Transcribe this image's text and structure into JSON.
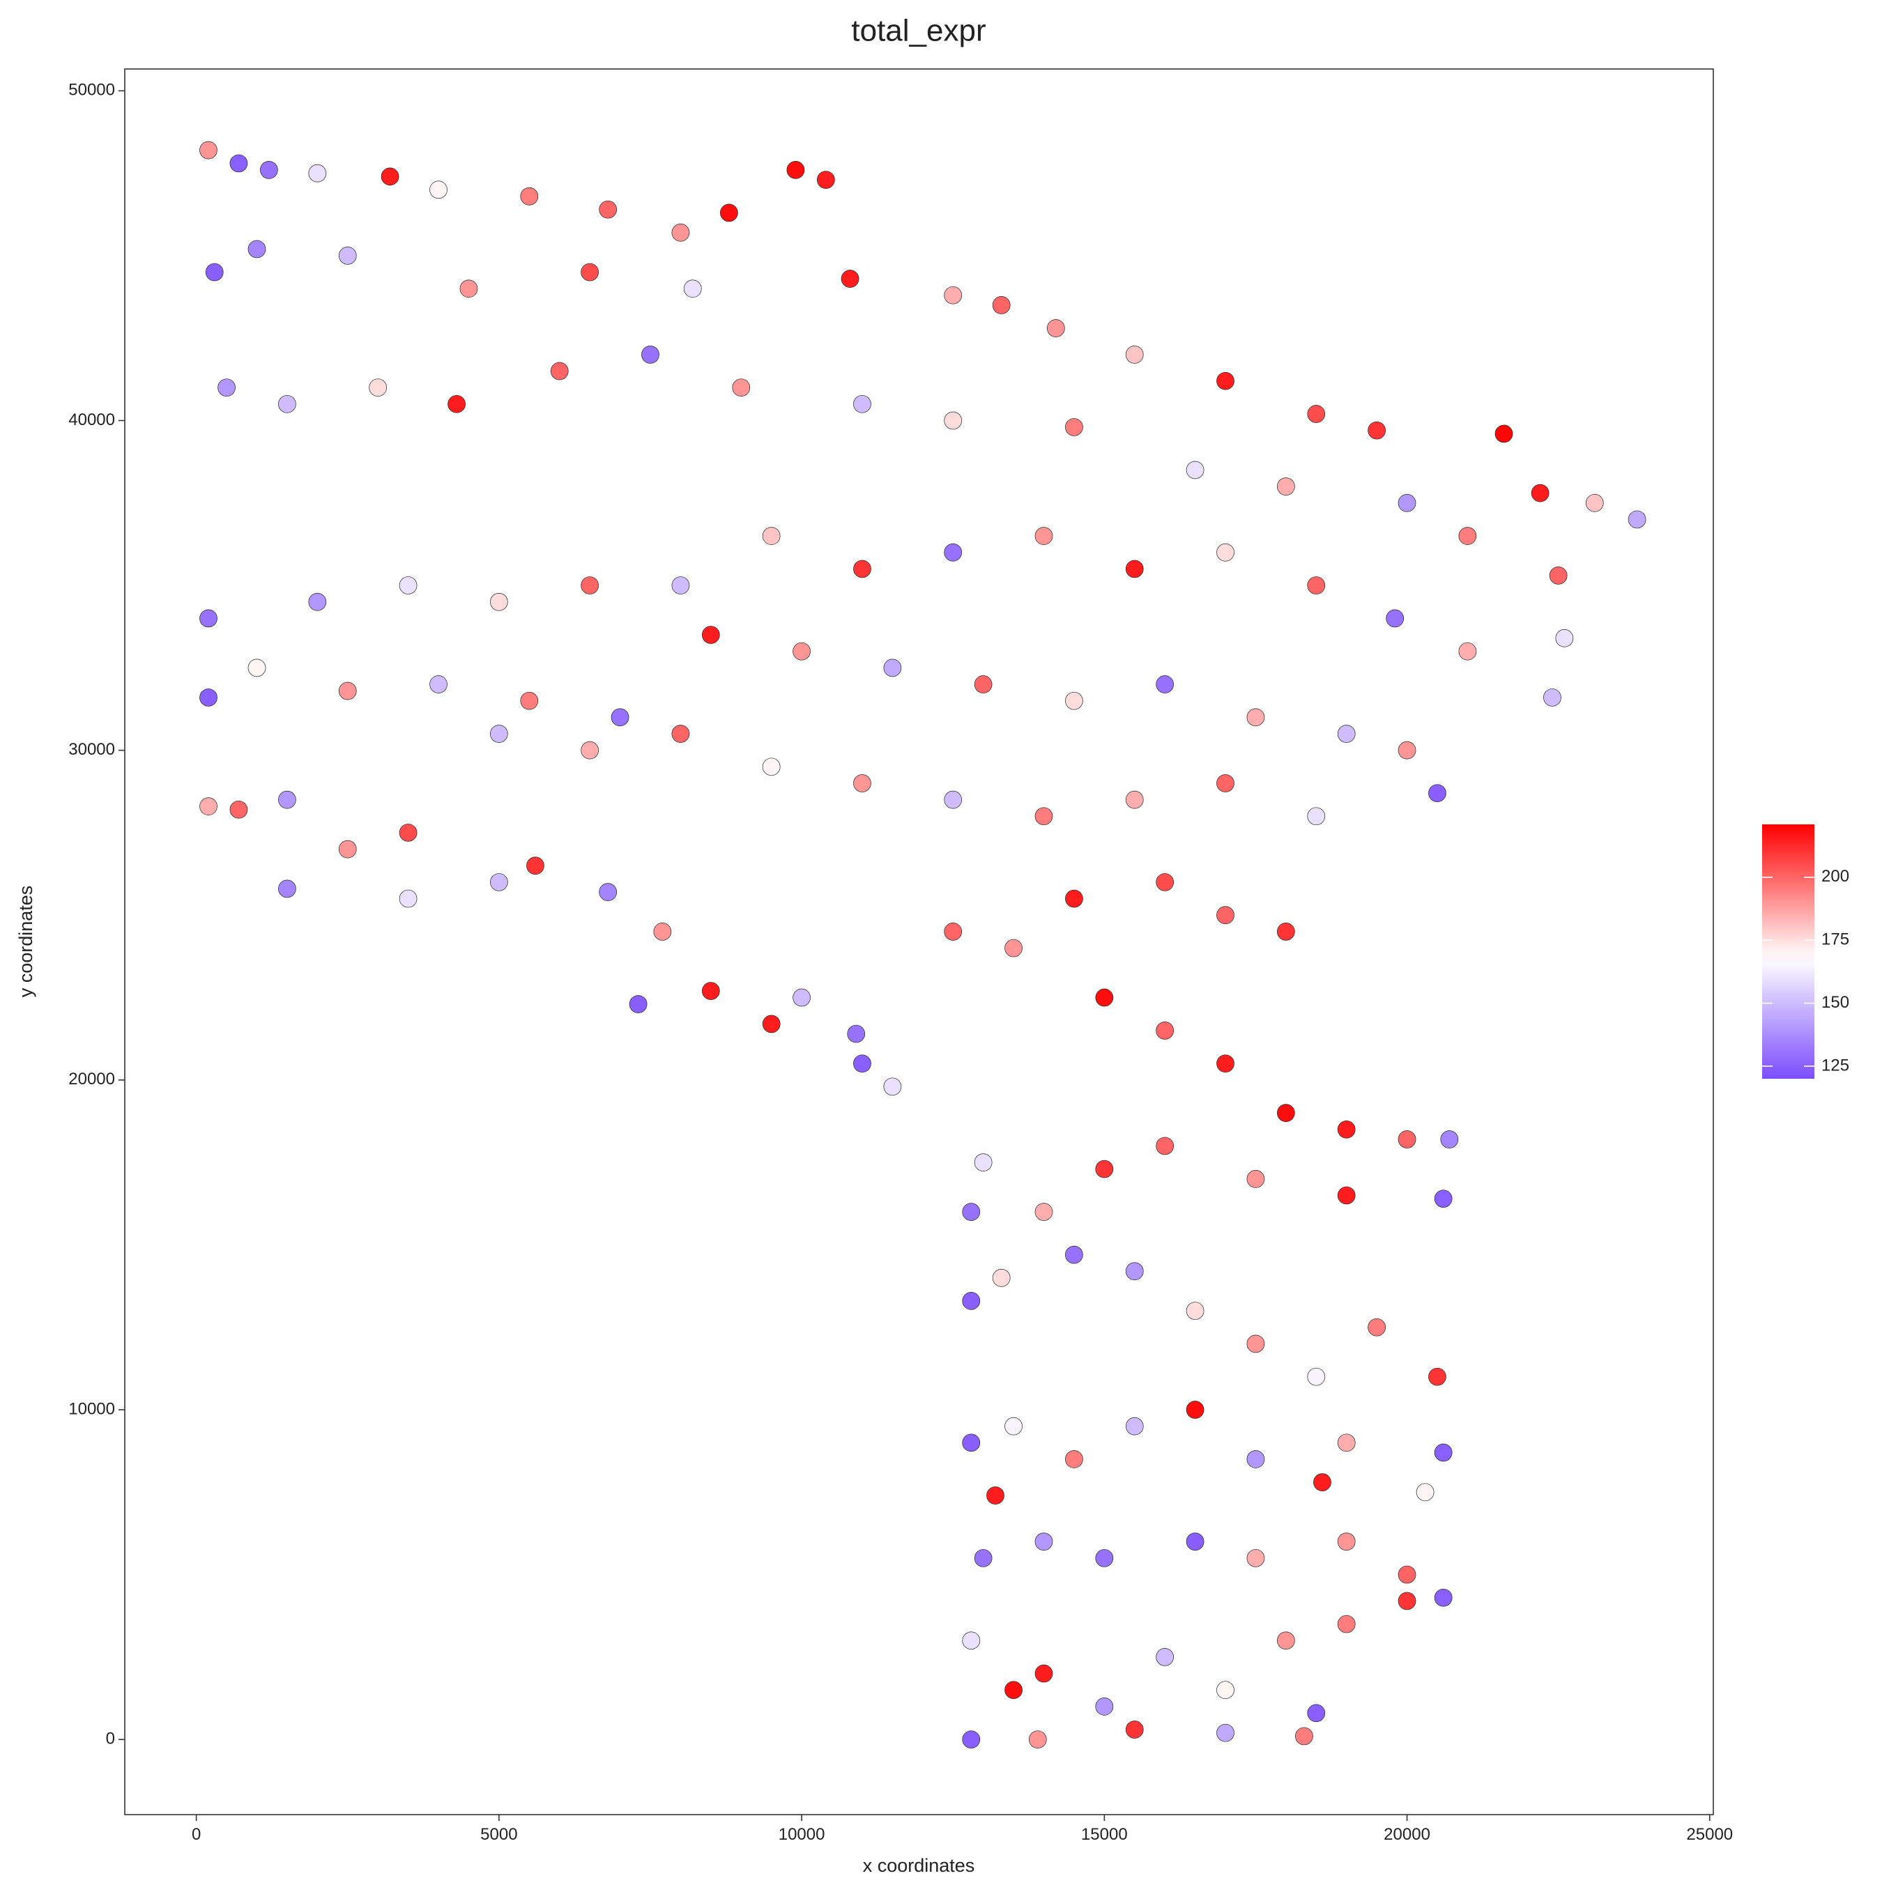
{
  "chart_data": {
    "type": "scatter",
    "title": "total_expr",
    "x_label": "x coordinates",
    "y_label": "y coordinates",
    "xlim": [
      -1182,
      25060
    ],
    "ylim": [
      -2279,
      50662
    ],
    "xticks": [
      0,
      5000,
      10000,
      15000,
      20000,
      25000
    ],
    "yticks": [
      0,
      10000,
      20000,
      30000,
      40000,
      50000
    ],
    "grid": false,
    "legend_position": "right",
    "color_scale": {
      "low": "#7b4dff",
      "mid": "#ffffff",
      "high": "#ff0000",
      "midpoint": 168,
      "lim": [
        120,
        221
      ],
      "ticks": [
        125,
        150,
        175,
        200
      ]
    },
    "x": [
      200,
      700,
      1200,
      2000,
      3200,
      4000,
      5500,
      6800,
      8000,
      9900,
      10400,
      8800,
      300,
      1000,
      2500,
      4500,
      6500,
      8200,
      10800,
      12500,
      13300,
      14200,
      15500,
      17000,
      18500,
      19500,
      21600,
      22200,
      23800,
      23100,
      500,
      1500,
      3000,
      4300,
      6000,
      7500,
      9000,
      11000,
      12500,
      14500,
      16500,
      18000,
      20000,
      21000,
      22500,
      22600,
      22400,
      21000,
      19800,
      18500,
      17000,
      15500,
      14000,
      12500,
      11000,
      9500,
      8000,
      6500,
      5000,
      3500,
      2000,
      200,
      200,
      1000,
      2500,
      4000,
      5500,
      7000,
      8500,
      10000,
      11500,
      13000,
      14500,
      16000,
      17500,
      19000,
      20000,
      20500,
      18500,
      17000,
      15500,
      14000,
      12500,
      11000,
      9500,
      8000,
      6500,
      5000,
      200,
      700,
      1500,
      2500,
      3500,
      1500,
      3500,
      5000,
      5600,
      6800,
      7300,
      7700,
      8500,
      9500,
      10000,
      11000,
      11500,
      10900,
      12500,
      13500,
      14500,
      16000,
      17000,
      18000,
      15000,
      16000,
      17000,
      18000,
      19000,
      20000,
      20700,
      20600,
      19000,
      17500,
      16000,
      15000,
      14000,
      13000,
      12800,
      12800,
      13300,
      14500,
      15500,
      16500,
      17500,
      18500,
      19500,
      20500,
      20600,
      20300,
      19000,
      18600,
      17500,
      16500,
      15500,
      14500,
      13500,
      12800,
      13200,
      14000,
      15000,
      16500,
      17500,
      19000,
      20000,
      20000,
      20600,
      19000,
      18000,
      17000,
      16000,
      15000,
      14000,
      13500,
      12800,
      13900,
      15500,
      17000,
      18500,
      18300,
      13000,
      12800
    ],
    "y": [
      48200,
      47800,
      47600,
      47500,
      47400,
      47000,
      46800,
      46400,
      45700,
      47600,
      47300,
      46300,
      44500,
      45200,
      45000,
      44000,
      44500,
      44000,
      44300,
      43800,
      43500,
      42800,
      42000,
      41200,
      40200,
      39700,
      39600,
      37800,
      37000,
      37500,
      41000,
      40500,
      41000,
      40500,
      41500,
      42000,
      41000,
      40500,
      40000,
      39800,
      38500,
      38000,
      37500,
      36500,
      35300,
      33400,
      31600,
      33000,
      34000,
      35000,
      36000,
      35500,
      36500,
      36000,
      35500,
      36500,
      35000,
      35000,
      34500,
      35000,
      34500,
      34000,
      31600,
      32500,
      31800,
      32000,
      31500,
      31000,
      33500,
      33000,
      32500,
      32000,
      31500,
      32000,
      31000,
      30500,
      30000,
      28700,
      28000,
      29000,
      28500,
      28000,
      28500,
      29000,
      29500,
      30500,
      30000,
      30500,
      28300,
      28200,
      28500,
      27000,
      27500,
      25800,
      25500,
      26000,
      26500,
      25700,
      22300,
      24500,
      22700,
      21700,
      22500,
      20500,
      19800,
      21400,
      24500,
      24000,
      25500,
      26000,
      25000,
      24500,
      22500,
      21500,
      20500,
      19000,
      18500,
      18200,
      18200,
      16400,
      16500,
      17000,
      18000,
      17300,
      16000,
      17500,
      16000,
      13300,
      14000,
      14700,
      14200,
      13000,
      12000,
      11000,
      12500,
      11000,
      8700,
      7500,
      9000,
      7800,
      8500,
      10000,
      9500,
      8500,
      9500,
      9000,
      7400,
      6000,
      5500,
      6000,
      5500,
      6000,
      5000,
      4200,
      4300,
      3500,
      3000,
      1500,
      2500,
      1000,
      2000,
      1500,
      0,
      0,
      300,
      200,
      800,
      100,
      5500,
      3000
    ],
    "values": [
      190,
      125,
      130,
      160,
      215,
      170,
      195,
      200,
      190,
      218,
      215,
      218,
      125,
      135,
      150,
      190,
      205,
      160,
      215,
      185,
      200,
      190,
      180,
      215,
      205,
      210,
      220,
      215,
      145,
      180,
      140,
      150,
      175,
      215,
      200,
      130,
      190,
      150,
      175,
      195,
      160,
      185,
      140,
      195,
      200,
      160,
      150,
      185,
      130,
      200,
      175,
      215,
      190,
      130,
      210,
      180,
      150,
      200,
      175,
      160,
      140,
      130,
      125,
      170,
      190,
      150,
      195,
      130,
      215,
      190,
      145,
      200,
      175,
      130,
      185,
      150,
      190,
      125,
      160,
      200,
      185,
      195,
      150,
      190,
      170,
      200,
      185,
      150,
      185,
      200,
      140,
      190,
      205,
      135,
      160,
      150,
      210,
      135,
      125,
      190,
      215,
      215,
      150,
      125,
      160,
      130,
      200,
      190,
      215,
      205,
      200,
      210,
      218,
      200,
      215,
      218,
      215,
      200,
      135,
      125,
      215,
      190,
      200,
      210,
      185,
      160,
      130,
      125,
      175,
      130,
      140,
      175,
      190,
      165,
      195,
      210,
      125,
      170,
      185,
      215,
      140,
      218,
      150,
      195,
      165,
      125,
      215,
      140,
      130,
      125,
      185,
      190,
      200,
      210,
      125,
      195,
      190,
      170,
      150,
      140,
      215,
      218,
      125,
      190,
      210,
      145,
      125,
      195,
      130,
      160
    ]
  }
}
